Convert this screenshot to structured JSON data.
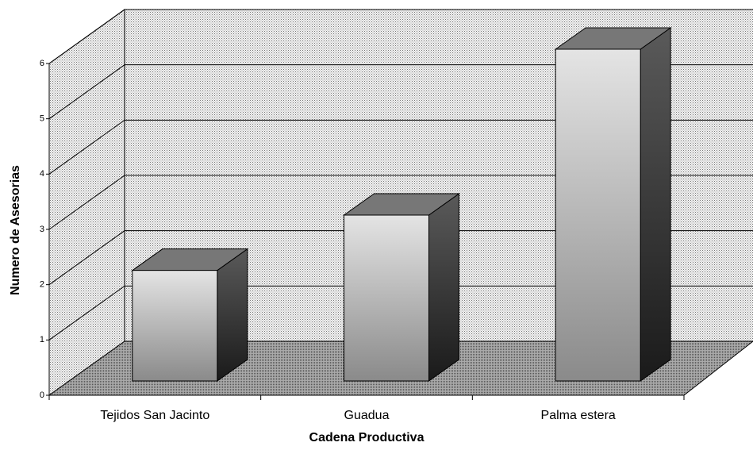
{
  "chart_data": {
    "type": "bar3d",
    "x_label": "Cadena Productiva",
    "y_label": "Numero de Asesorias",
    "categories": [
      "Tejidos San Jacinto",
      "Guadua",
      "Palma estera"
    ],
    "values": [
      2,
      3,
      6
    ],
    "ylim": [
      0,
      6
    ],
    "yticks": [
      0,
      1,
      2,
      3,
      4,
      5,
      6
    ],
    "grid": true
  }
}
